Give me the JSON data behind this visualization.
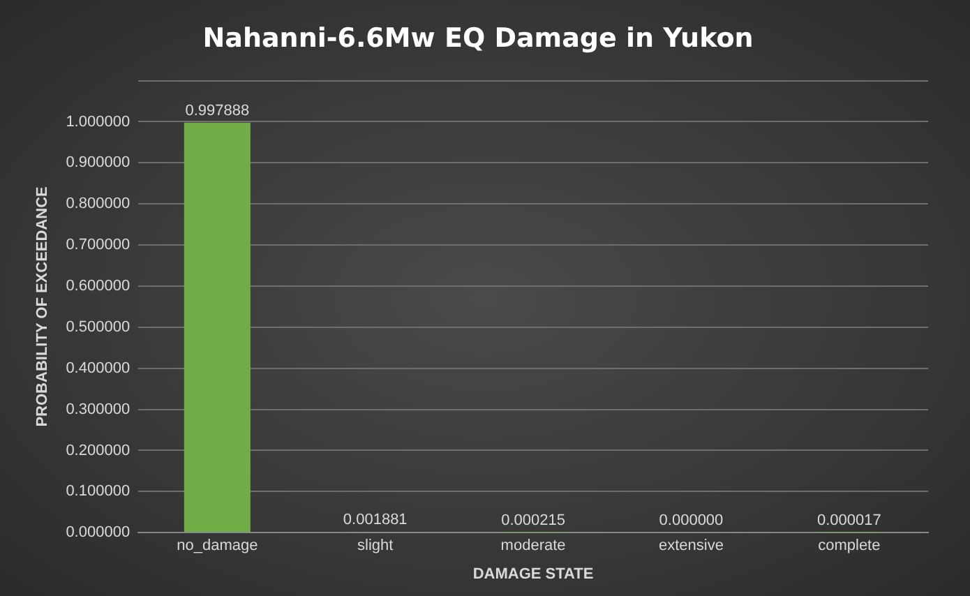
{
  "chart_data": {
    "type": "bar",
    "title": "Nahanni-6.6Mw EQ Damage in Yukon",
    "xlabel": "DAMAGE STATE",
    "ylabel": "PROBABILITY OF EXCEEDANCE",
    "categories": [
      "no_damage",
      "slight",
      "moderate",
      "extensive",
      "complete"
    ],
    "values": [
      0.997888,
      0.001881,
      0.000215,
      0.0,
      1.7e-05
    ],
    "color": "#70ad47",
    "ylim": [
      0,
      1.1
    ],
    "yticks": [
      {
        "value": 0,
        "label": "0.000000"
      },
      {
        "value": 0.1,
        "label": "0.100000"
      },
      {
        "value": 0.2,
        "label": "0.200000"
      },
      {
        "value": 0.3,
        "label": "0.300000"
      },
      {
        "value": 0.4,
        "label": "0.400000"
      },
      {
        "value": 0.5,
        "label": "0.500000"
      },
      {
        "value": 0.6,
        "label": "0.600000"
      },
      {
        "value": 0.7,
        "label": "0.700000"
      },
      {
        "value": 0.8,
        "label": "0.800000"
      },
      {
        "value": 0.9,
        "label": "0.900000"
      },
      {
        "value": 1.0,
        "label": "1.000000"
      },
      {
        "value": 1.1,
        "label": null
      }
    ],
    "value_labels": [
      "0.997888",
      "0.001881",
      "0.000215",
      "0.000000",
      "0.000017"
    ],
    "grid": "y",
    "legend": false
  }
}
